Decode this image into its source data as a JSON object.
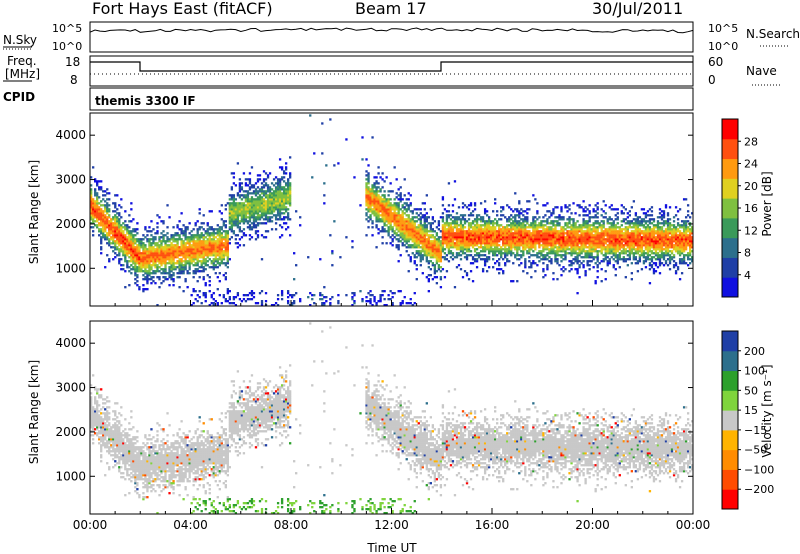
{
  "header": {
    "station": "Fort Hays East (fitACF)",
    "beam": "Beam 17",
    "date": "30/Jul/2011"
  },
  "sky_panel": {
    "left_label": "N.Sky",
    "right_label": "N.Search",
    "tick_hi": "10^5",
    "tick_lo": "10^0"
  },
  "freq_panel": {
    "left_label": "Freq.",
    "left_unit": "[MHz]",
    "left_tick_hi": "18",
    "left_tick_lo": "8",
    "right_label": "Nave",
    "right_tick_hi": "60",
    "right_tick_lo": "0"
  },
  "cpid": {
    "label": "CPID",
    "value": "themis 3300 IF"
  },
  "colors": {
    "velocity_scale": [
      "#ff0000",
      "#ff4c00",
      "#ff8c00",
      "#ffb400",
      "#c8c8c8",
      "#7fd43c",
      "#2ca02c",
      "#2c6f8c",
      "#1f3fa6"
    ],
    "power_scale": [
      "#1010e0",
      "#1f3fa6",
      "#2c6f8c",
      "#3a9a5a",
      "#7fc040",
      "#e0d020",
      "#ff9a10",
      "#ff5010",
      "#ff0000"
    ]
  },
  "chart_data": [
    {
      "type": "heatmap",
      "title": "",
      "ylabel": "Slant Range [km]",
      "ylim": [
        150,
        4500
      ],
      "yticks": [
        "1000",
        "2000",
        "3000",
        "4000"
      ],
      "xlim": [
        "00:00",
        "24:00"
      ],
      "colorbar": {
        "label": "Power [dB]",
        "range": [
          0,
          32
        ],
        "ticks": [
          "4",
          "8",
          "12",
          "16",
          "20",
          "24",
          "28"
        ]
      },
      "dominant_echo_bands": [
        {
          "start": "00:00",
          "end": "02:00",
          "range_start": 2400,
          "range_end": 1200,
          "power": 24
        },
        {
          "start": "02:00",
          "end": "05:30",
          "range_start": 1200,
          "range_end": 1500,
          "power": 22
        },
        {
          "start": "05:30",
          "end": "08:00",
          "range_start": 2200,
          "range_end": 2600,
          "power": 14
        },
        {
          "start": "11:00",
          "end": "14:00",
          "range_start": 2600,
          "range_end": 1300,
          "power": 22
        },
        {
          "start": "14:00",
          "end": "24:00",
          "range_start": 1700,
          "range_end": 1600,
          "power": 24
        }
      ]
    },
    {
      "type": "heatmap",
      "title": "",
      "ylabel": "Slant Range [km]",
      "xlabel": "Time UT",
      "ylim": [
        150,
        4500
      ],
      "yticks": [
        "1000",
        "2000",
        "3000",
        "4000"
      ],
      "xticks": [
        "00:00",
        "04:00",
        "08:00",
        "12:00",
        "16:00",
        "20:00",
        "00:00"
      ],
      "colorbar": {
        "label": "Velocity [m s⁻¹]",
        "range": [
          -250,
          250
        ],
        "ticks": [
          "200",
          "100",
          "50",
          "15",
          "−15",
          "−50",
          "−100",
          "−200"
        ]
      },
      "dominant_velocity": "ground scatter (between −15 and 15 m s⁻¹) along the main echo bands; positive 50–100 m s⁻¹ near 500 km around 04:00–08:00"
    }
  ]
}
